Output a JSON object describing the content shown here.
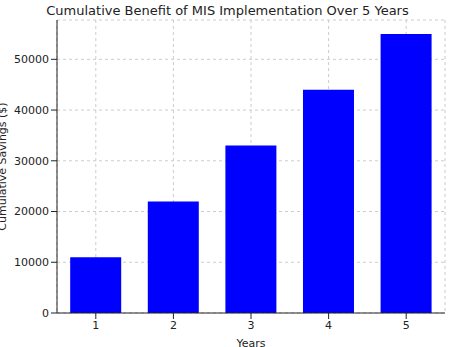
{
  "chart_data": {
    "type": "bar",
    "title": "Cumulative Benefit of MIS Implementation Over 5 Years",
    "x_label": "Years",
    "y_label": "Cumulative Savings ($)",
    "categories": [
      "1",
      "2",
      "3",
      "4",
      "5"
    ],
    "values": [
      11000,
      22000,
      33000,
      44000,
      55000
    ],
    "color": "#0000ff",
    "ylim": [
      0,
      57750
    ],
    "yticks": [
      0,
      10000,
      20000,
      30000,
      40000,
      50000
    ],
    "grid": true
  }
}
